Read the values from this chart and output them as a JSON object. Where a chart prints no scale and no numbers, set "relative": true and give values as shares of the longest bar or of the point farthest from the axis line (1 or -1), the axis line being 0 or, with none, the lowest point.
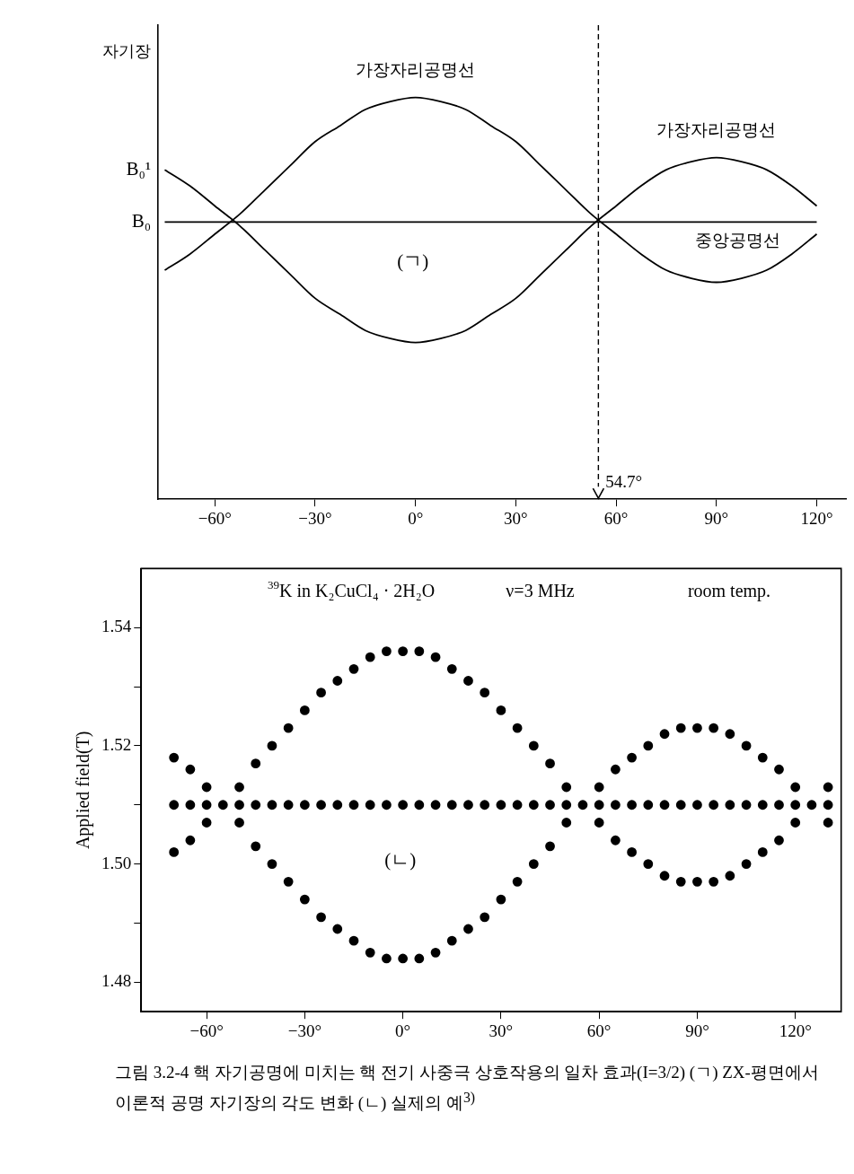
{
  "chart_data": [
    {
      "type": "line",
      "relative": true,
      "ylabel": "자기장",
      "marker": "none",
      "line_style": "solid",
      "x": [
        -75,
        -67.5,
        -60,
        -52.5,
        -45,
        -37.5,
        -30,
        -22.5,
        -15,
        -7.5,
        0,
        7.5,
        15,
        22.5,
        30,
        37.5,
        45,
        52.5,
        60,
        67.5,
        75,
        82.5,
        90,
        97.5,
        105,
        112.5,
        120
      ],
      "xlim": [
        -77,
        129
      ],
      "xticks": [
        {
          "value": -60,
          "label": "−60°"
        },
        {
          "value": -30,
          "label": "−30°"
        },
        {
          "value": 0,
          "label": "0°"
        },
        {
          "value": 30,
          "label": "30°"
        },
        {
          "value": 60,
          "label": "60°"
        },
        {
          "value": 90,
          "label": "90°"
        },
        {
          "value": 120,
          "label": "120°"
        }
      ],
      "series": [
        {
          "name": "가장자리공명선",
          "color": "#000000",
          "values": [
            0.57,
            0.61,
            0.66,
            0.71,
            0.77,
            0.83,
            0.89,
            0.93,
            0.97,
            0.99,
            1,
            0.99,
            0.97,
            0.93,
            0.89,
            0.83,
            0.77,
            0.71,
            0.66,
            0.61,
            0.57,
            0.55,
            0.54,
            0.55,
            0.57,
            0.61,
            0.66
          ]
        },
        {
          "name": "가장자리공명선",
          "color": "#000000",
          "values": [
            0.82,
            0.78,
            0.73,
            0.68,
            0.62,
            0.56,
            0.5,
            0.46,
            0.42,
            0.4,
            0.39,
            0.4,
            0.42,
            0.46,
            0.5,
            0.56,
            0.62,
            0.68,
            0.73,
            0.78,
            0.82,
            0.84,
            0.85,
            0.84,
            0.82,
            0.78,
            0.73
          ]
        },
        {
          "name": "중앙공명선",
          "color": "#000000",
          "values": [
            0.69,
            0.69,
            0.69,
            0.69,
            0.69,
            0.69,
            0.69,
            0.69,
            0.69,
            0.69,
            0.69,
            0.69,
            0.69,
            0.69,
            0.69,
            0.69,
            0.69,
            0.69,
            0.69,
            0.69,
            0.69,
            0.69,
            0.69,
            0.69,
            0.69,
            0.69,
            0.69
          ]
        }
      ],
      "ref_lines": [
        {
          "axis": "x",
          "value": 54.7,
          "label": "54.7°",
          "line_style": "dashed"
        }
      ],
      "annotations": [
        "B₀¹",
        "B₀",
        "(ㄱ)"
      ]
    },
    {
      "type": "scatter",
      "marker": "circle",
      "ylabel": "Applied field(T)",
      "title": "그림 3.2-4  핵 자기공명에 미치는 핵 전기 사중극 상호작용의 일차 효과(I=3/2) (ㄱ) ZX-평면에서 이론적 공명 자기장의 각도 변화 (ㄴ) 실제의 예$^{3)}$",
      "xlim": [
        -80,
        134
      ],
      "xticks": [
        {
          "value": -60,
          "label": "−60°"
        },
        {
          "value": -30,
          "label": "−30°"
        },
        {
          "value": 0,
          "label": "0°"
        },
        {
          "value": 30,
          "label": "30°"
        },
        {
          "value": 60,
          "label": "60°"
        },
        {
          "value": 90,
          "label": "90°"
        },
        {
          "value": 120,
          "label": "120°"
        }
      ],
      "ylim": [
        1.475,
        1.55
      ],
      "yticks": [
        1.48,
        {
          "value": 1.49,
          "label": null
        },
        {
          "value": 1.5,
          "label": "1.50"
        },
        {
          "value": 1.51,
          "label": null
        },
        1.52,
        {
          "value": 1.53,
          "label": null
        },
        1.54
      ],
      "series": [
        {
          "color": "#000000",
          "x": [
            -70,
            -65,
            -60,
            -55,
            -50,
            -45,
            -40,
            -35,
            -30,
            -25,
            -20,
            -15,
            -10,
            -5,
            0,
            5,
            10,
            15,
            20,
            25,
            30,
            35,
            40,
            45,
            50,
            55,
            60,
            65,
            70,
            75,
            80,
            85,
            90,
            95,
            100,
            105,
            110,
            115,
            120,
            125,
            130
          ],
          "values": [
            1.51,
            1.51,
            1.51,
            1.51,
            1.51,
            1.51,
            1.51,
            1.51,
            1.51,
            1.51,
            1.51,
            1.51,
            1.51,
            1.51,
            1.51,
            1.51,
            1.51,
            1.51,
            1.51,
            1.51,
            1.51,
            1.51,
            1.51,
            1.51,
            1.51,
            1.51,
            1.51,
            1.51,
            1.51,
            1.51,
            1.51,
            1.51,
            1.51,
            1.51,
            1.51,
            1.51,
            1.51,
            1.51,
            1.51,
            1.51,
            1.51
          ]
        },
        {
          "color": "#000000",
          "x": [
            -70,
            -65,
            -60,
            -50,
            -45,
            -40,
            -35,
            -30,
            -25,
            -20,
            -15,
            -10,
            -5,
            0,
            5,
            10,
            15,
            20,
            25,
            30,
            35,
            40,
            45,
            50,
            60,
            65,
            70,
            75,
            80,
            85,
            90,
            95,
            100,
            105,
            110,
            115,
            120,
            130
          ],
          "values": [
            1.502,
            1.504,
            1.507,
            1.513,
            1.517,
            1.52,
            1.523,
            1.526,
            1.529,
            1.531,
            1.533,
            1.535,
            1.536,
            1.536,
            1.536,
            1.535,
            1.533,
            1.531,
            1.529,
            1.526,
            1.523,
            1.52,
            1.517,
            1.513,
            1.507,
            1.504,
            1.502,
            1.5,
            1.498,
            1.497,
            1.497,
            1.497,
            1.498,
            1.5,
            1.502,
            1.504,
            1.507,
            1.513
          ]
        },
        {
          "color": "#000000",
          "x": [
            -70,
            -65,
            -60,
            -50,
            -45,
            -40,
            -35,
            -30,
            -25,
            -20,
            -15,
            -10,
            -5,
            0,
            5,
            10,
            15,
            20,
            25,
            30,
            35,
            40,
            45,
            50,
            60,
            65,
            70,
            75,
            80,
            85,
            90,
            95,
            100,
            105,
            110,
            115,
            120,
            130
          ],
          "values": [
            1.518,
            1.516,
            1.513,
            1.507,
            1.503,
            1.5,
            1.497,
            1.494,
            1.491,
            1.489,
            1.487,
            1.485,
            1.484,
            1.484,
            1.484,
            1.485,
            1.487,
            1.489,
            1.491,
            1.494,
            1.497,
            1.5,
            1.503,
            1.507,
            1.513,
            1.516,
            1.518,
            1.52,
            1.522,
            1.523,
            1.523,
            1.523,
            1.522,
            1.52,
            1.518,
            1.516,
            1.513,
            1.507
          ]
        }
      ],
      "annotations": [
        "$^{39}$K in K₂CuCl₄ · 2H₂O",
        "ν=3 MHz",
        "room temp.",
        "(ㄴ)"
      ]
    }
  ]
}
